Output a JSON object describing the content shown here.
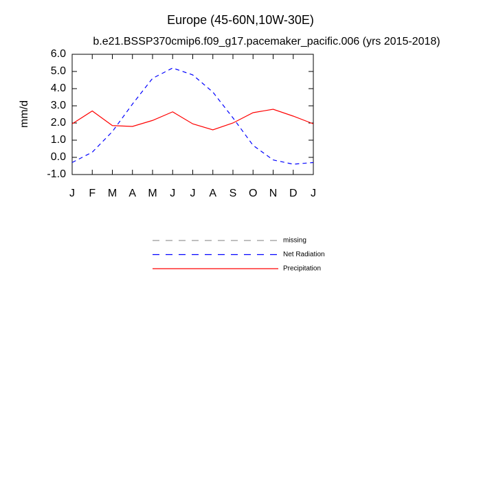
{
  "chart_data": {
    "type": "line",
    "title": "Europe (45-60N,10W-30E)",
    "subtitle": "b.e21.BSSP370cmip6.f09_g17.pacemaker_pacific.006 (yrs 2015-2018)",
    "y_label": "mm/d",
    "categories": [
      "J",
      "F",
      "M",
      "A",
      "M",
      "J",
      "J",
      "A",
      "S",
      "O",
      "N",
      "D",
      "J"
    ],
    "series": [
      {
        "name": "missing",
        "color": "#999999",
        "dashed": true,
        "values": [
          null,
          null,
          null,
          null,
          null,
          null,
          null,
          null,
          null,
          null,
          null,
          null,
          null
        ]
      },
      {
        "name": "Net Radiation",
        "color": "#0000ff",
        "dashed": true,
        "values": [
          -0.3,
          0.3,
          1.5,
          3.1,
          4.6,
          5.2,
          4.8,
          3.8,
          2.3,
          0.7,
          -0.15,
          -0.4,
          -0.3
        ]
      },
      {
        "name": "Precipitation",
        "color": "#ff0000",
        "dashed": false,
        "values": [
          1.95,
          2.7,
          1.85,
          1.8,
          2.15,
          2.65,
          1.95,
          1.6,
          2.0,
          2.6,
          2.8,
          2.4,
          1.95
        ]
      }
    ],
    "ylim": [
      -1,
      6
    ],
    "yticks": [
      {
        "value": -1,
        "label": "-1.0"
      },
      {
        "value": 0,
        "label": "0.0"
      },
      {
        "value": 1,
        "label": "1.0"
      },
      {
        "value": 2,
        "label": "2.0"
      },
      {
        "value": 3,
        "label": "3.0"
      },
      {
        "value": 4,
        "label": "4.0"
      },
      {
        "value": 5,
        "label": "5.0"
      },
      {
        "value": 6,
        "label": "6.0"
      }
    ],
    "grid": false,
    "legend": "bottom"
  }
}
